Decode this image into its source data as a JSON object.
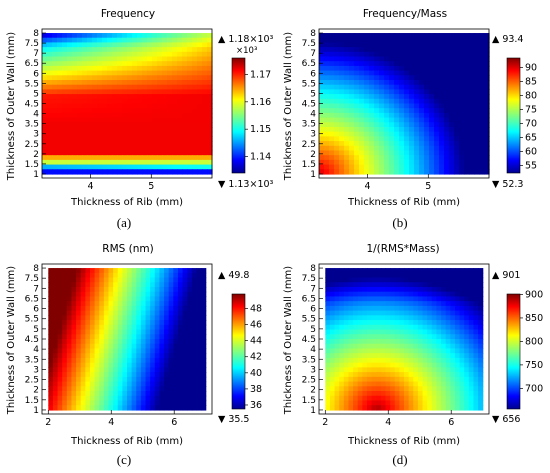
{
  "figure": {
    "panel_captions": [
      "(a)",
      "(b)",
      "(c)",
      "(d)"
    ]
  },
  "chart_data": [
    {
      "type": "heatmap",
      "title": "Frequency",
      "xlabel": "Thickness of Rib (mm)",
      "ylabel": "Thickness of Outer Wall (mm)",
      "xlim": [
        3.2,
        6.0
      ],
      "ylim": [
        0.8,
        8.2
      ],
      "xticks": [
        "4",
        "5"
      ],
      "xtick_values": [
        4,
        5
      ],
      "yticks": [
        "1",
        "1.5",
        "2",
        "2.5",
        "3",
        "3.5",
        "4",
        "4.5",
        "5",
        "5.5",
        "6",
        "6.5",
        "7",
        "7.5",
        "8"
      ],
      "ytick_values": [
        1,
        1.5,
        2,
        2.5,
        3,
        3.5,
        4,
        4.5,
        5,
        5.5,
        6,
        6.5,
        7,
        7.5,
        8
      ],
      "colorbar": {
        "max_label": "▲ 1.18×10³",
        "min_label": "▼ 1.13×10³",
        "exponent_label": "×10³",
        "ticks": [
          "1.17",
          "1.16",
          "1.15",
          "1.14"
        ],
        "tick_values": [
          1.17,
          1.16,
          1.15,
          1.14
        ],
        "range": [
          1.134,
          1.176
        ],
        "colormap": "rainbow"
      },
      "extremes": {
        "max": 1.18,
        "min": 1.13,
        "unit_multiplier": 1000
      }
    },
    {
      "type": "heatmap",
      "title": "Frequency/Mass",
      "xlabel": "Thickness of Rib (mm)",
      "ylabel": "Thickness of Outer Wall (mm)",
      "xlim": [
        3.2,
        6.0
      ],
      "ylim": [
        0.8,
        8.2
      ],
      "xticks": [
        "4",
        "5"
      ],
      "xtick_values": [
        4,
        5
      ],
      "yticks": [
        "1",
        "1.5",
        "2",
        "2.5",
        "3",
        "3.5",
        "4",
        "4.5",
        "5",
        "5.5",
        "6",
        "6.5",
        "7",
        "7.5",
        "8"
      ],
      "ytick_values": [
        1,
        1.5,
        2,
        2.5,
        3,
        3.5,
        4,
        4.5,
        5,
        5.5,
        6,
        6.5,
        7,
        7.5,
        8
      ],
      "colorbar": {
        "max_label": "▲ 93.4",
        "min_label": "▼ 52.3",
        "ticks": [
          "90",
          "85",
          "80",
          "75",
          "70",
          "65",
          "60",
          "55"
        ],
        "tick_values": [
          90,
          85,
          80,
          75,
          70,
          65,
          60,
          55
        ],
        "range": [
          52.3,
          93.4
        ],
        "colormap": "rainbow"
      },
      "extremes": {
        "max": 93.4,
        "min": 52.3
      }
    },
    {
      "type": "heatmap",
      "title": "RMS (nm)",
      "xlabel": "Thickness of Rib (mm)",
      "ylabel": "Thickness of Outer Wall (mm)",
      "xlim": [
        1.8,
        7.2
      ],
      "ylim": [
        0.8,
        8.2
      ],
      "xticks": [
        "2",
        "4",
        "6"
      ],
      "xtick_values": [
        2,
        4,
        6
      ],
      "yticks": [
        "1",
        "1.5",
        "2",
        "2.5",
        "3",
        "3.5",
        "4",
        "4.5",
        "5",
        "5.5",
        "6",
        "6.5",
        "7",
        "7.5",
        "8"
      ],
      "ytick_values": [
        1,
        1.5,
        2,
        2.5,
        3,
        3.5,
        4,
        4.5,
        5,
        5.5,
        6,
        6.5,
        7,
        7.5,
        8
      ],
      "colorbar": {
        "max_label": "▲ 49.8",
        "min_label": "▼ 35.5",
        "ticks": [
          "48",
          "46",
          "44",
          "42",
          "40",
          "38",
          "36"
        ],
        "tick_values": [
          48,
          46,
          44,
          42,
          40,
          38,
          36
        ],
        "range": [
          35.5,
          49.8
        ],
        "colormap": "rainbow"
      },
      "extremes": {
        "max": 49.8,
        "min": 35.5
      }
    },
    {
      "type": "heatmap",
      "title": "1/(RMS*Mass)",
      "xlabel": "Thickness of Rib (mm)",
      "ylabel": "Thickness of Outer Wall (mm)",
      "xlim": [
        1.8,
        7.2
      ],
      "ylim": [
        0.8,
        8.2
      ],
      "xticks": [
        "2",
        "4",
        "6"
      ],
      "xtick_values": [
        2,
        4,
        6
      ],
      "yticks": [
        "1",
        "1.5",
        "2",
        "2.5",
        "3",
        "3.5",
        "4",
        "4.5",
        "5",
        "5.5",
        "6",
        "6.5",
        "7",
        "7.5",
        "8"
      ],
      "ytick_values": [
        1,
        1.5,
        2,
        2.5,
        3,
        3.5,
        4,
        4.5,
        5,
        5.5,
        6,
        6.5,
        7,
        7.5,
        8
      ],
      "colorbar": {
        "max_label": "▲ 901",
        "min_label": "▼ 656",
        "ticks": [
          "900",
          "850",
          "800",
          "750",
          "700"
        ],
        "tick_values": [
          900,
          850,
          800,
          750,
          700
        ],
        "range": [
          656,
          901
        ],
        "colormap": "rainbow"
      },
      "extremes": {
        "max": 901,
        "min": 656
      }
    }
  ]
}
